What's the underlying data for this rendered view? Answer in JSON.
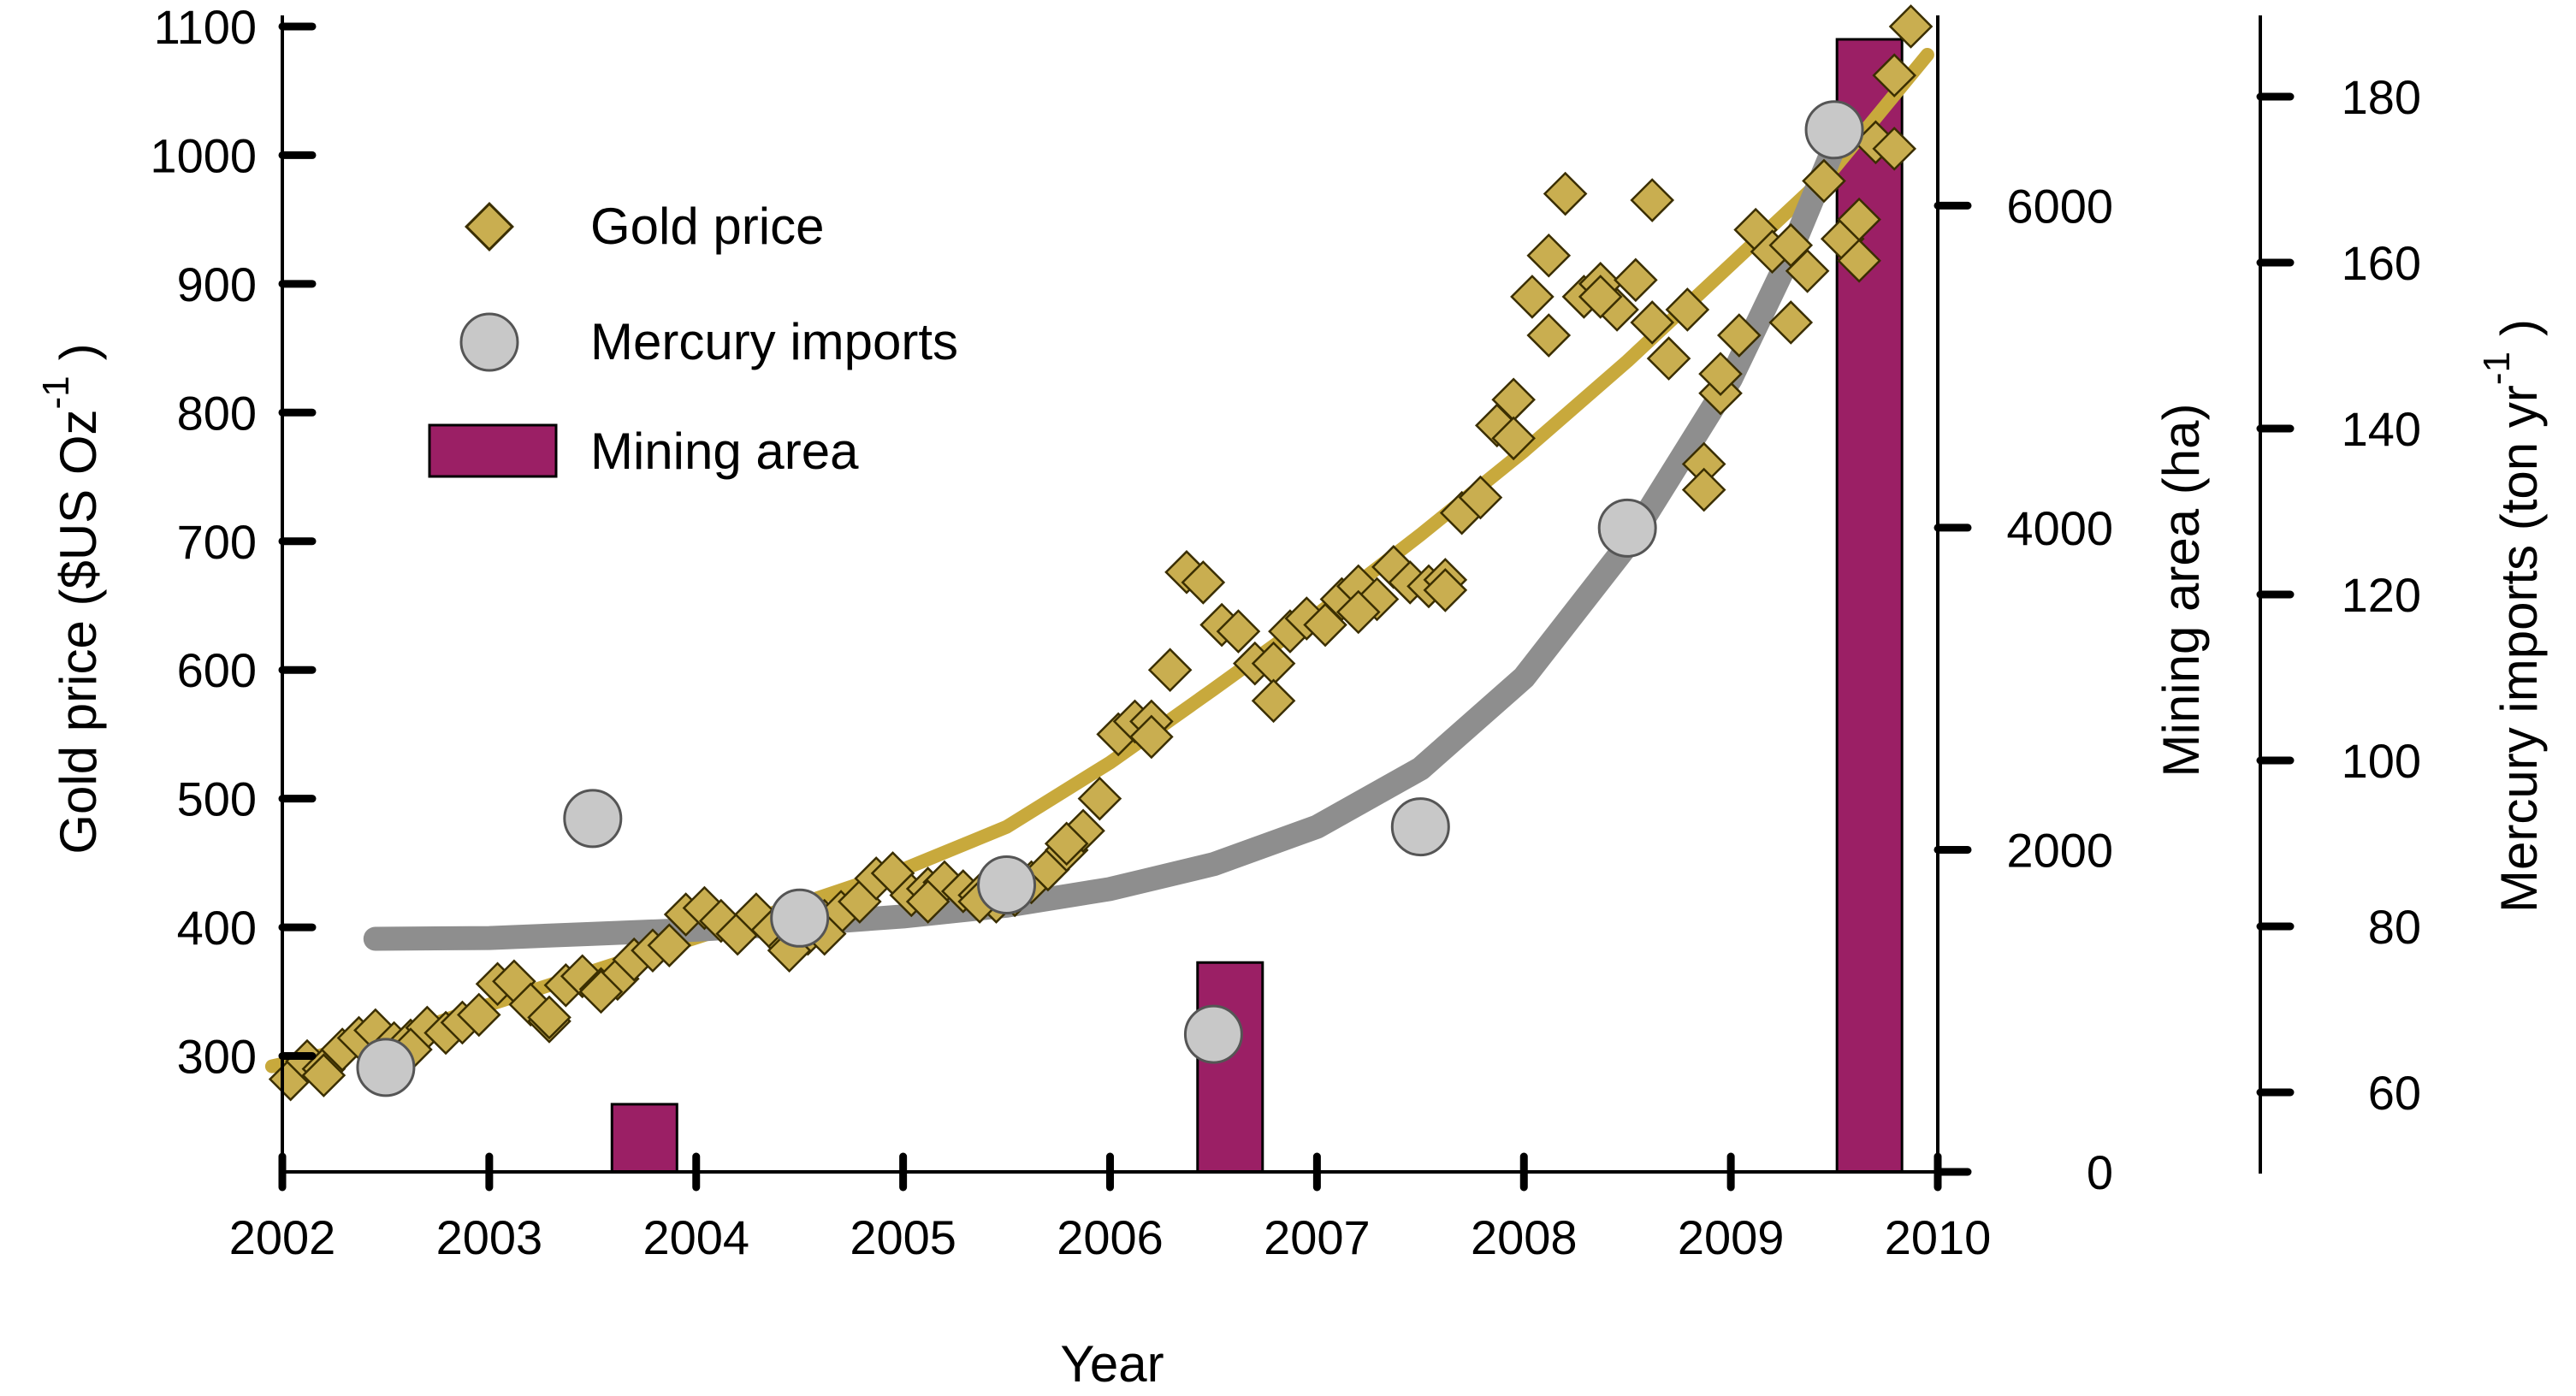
{
  "chart_data": {
    "type": "scatter",
    "xlabel": "Year",
    "xlim": [
      2002,
      2010
    ],
    "x_ticks": [
      "2002",
      "2003",
      "2004",
      "2005",
      "2006",
      "2007",
      "2008",
      "2009",
      "2010"
    ],
    "y_left": {
      "label_main": "Gold price ($US Oz",
      "label_sup": "-1",
      "label_close": ")",
      "ylim": [
        250,
        1100
      ],
      "ticks": [
        "300",
        "400",
        "500",
        "600",
        "700",
        "800",
        "900",
        "1000",
        "1100"
      ]
    },
    "y_right1": {
      "label": "Mining area (ha)",
      "ylim": [
        0,
        7000
      ],
      "ticks": [
        "0",
        "2000",
        "4000",
        "6000"
      ]
    },
    "y_right2": {
      "label_main": "Mercury imports (ton yr",
      "label_sup": "-1",
      "label_close": ")",
      "ylim": [
        50,
        190
      ],
      "ticks": [
        "60",
        "80",
        "100",
        "120",
        "140",
        "160",
        "180"
      ]
    },
    "legend": {
      "placement": "top-left",
      "gold": "Gold price",
      "mercury": "Mercury imports",
      "mining": "Mining area"
    },
    "colors": {
      "gold": "#C9AE50",
      "gold_edge": "#3a2e00",
      "gold_trend": "#C8A93C",
      "mercury": "#C8C8C8",
      "mercury_trend": "#8E8E8E",
      "mining": "#9B1F65"
    },
    "series": [
      {
        "name": "Mining area",
        "axis": "y_right1",
        "type": "bar",
        "points": [
          [
            2003.75,
            420
          ],
          [
            2006.58,
            1300
          ],
          [
            2009.67,
            7100
          ]
        ]
      },
      {
        "name": "Mercury imports",
        "axis": "y_right2",
        "type": "scatter",
        "points": [
          [
            2002.5,
            63
          ],
          [
            2003.5,
            93
          ],
          [
            2004.5,
            81
          ],
          [
            2005.5,
            85
          ],
          [
            2006.5,
            67
          ],
          [
            2007.5,
            92
          ],
          [
            2008.5,
            128
          ],
          [
            2009.5,
            176
          ]
        ]
      },
      {
        "name": "Gold price",
        "axis": "y_left",
        "type": "scatter",
        "points": [
          [
            2002.04,
            282
          ],
          [
            2002.12,
            296
          ],
          [
            2002.2,
            290
          ],
          [
            2002.29,
            305
          ],
          [
            2002.37,
            314
          ],
          [
            2002.45,
            320
          ],
          [
            2002.54,
            310
          ],
          [
            2002.62,
            312
          ],
          [
            2002.7,
            322
          ],
          [
            2002.79,
            318
          ],
          [
            2002.87,
            326
          ],
          [
            2002.95,
            332
          ],
          [
            2003.04,
            356
          ],
          [
            2003.12,
            358
          ],
          [
            2003.2,
            340
          ],
          [
            2003.29,
            327
          ],
          [
            2003.37,
            355
          ],
          [
            2003.45,
            362
          ],
          [
            2003.54,
            352
          ],
          [
            2003.62,
            360
          ],
          [
            2003.7,
            375
          ],
          [
            2003.79,
            382
          ],
          [
            2003.87,
            386
          ],
          [
            2003.95,
            410
          ],
          [
            2004.04,
            415
          ],
          [
            2004.12,
            405
          ],
          [
            2004.2,
            395
          ],
          [
            2004.29,
            410
          ],
          [
            2004.37,
            398
          ],
          [
            2004.45,
            385
          ],
          [
            2004.54,
            395
          ],
          [
            2004.62,
            405
          ],
          [
            2004.7,
            412
          ],
          [
            2004.79,
            420
          ],
          [
            2004.87,
            438
          ],
          [
            2004.95,
            442
          ],
          [
            2005.04,
            425
          ],
          [
            2005.12,
            430
          ],
          [
            2005.2,
            435
          ],
          [
            2005.29,
            428
          ],
          [
            2005.37,
            425
          ],
          [
            2005.45,
            420
          ],
          [
            2005.54,
            425
          ],
          [
            2005.62,
            435
          ],
          [
            2005.7,
            445
          ],
          [
            2005.79,
            460
          ],
          [
            2005.87,
            475
          ],
          [
            2005.95,
            500
          ],
          [
            2006.04,
            550
          ],
          [
            2006.12,
            560
          ],
          [
            2006.2,
            560
          ],
          [
            2006.29,
            600
          ],
          [
            2006.37,
            676
          ],
          [
            2006.45,
            668
          ],
          [
            2006.54,
            635
          ],
          [
            2006.62,
            630
          ],
          [
            2006.7,
            605
          ],
          [
            2006.79,
            605
          ],
          [
            2006.87,
            630
          ],
          [
            2006.95,
            640
          ],
          [
            2007.04,
            635
          ],
          [
            2007.12,
            655
          ],
          [
            2007.2,
            665
          ],
          [
            2007.29,
            655
          ],
          [
            2007.37,
            680
          ],
          [
            2007.45,
            668
          ],
          [
            2007.54,
            665
          ],
          [
            2007.62,
            670
          ],
          [
            2007.7,
            722
          ],
          [
            2007.79,
            734
          ],
          [
            2007.87,
            790
          ],
          [
            2007.95,
            810
          ],
          [
            2008.04,
            890
          ],
          [
            2008.12,
            922
          ],
          [
            2008.2,
            970
          ],
          [
            2008.29,
            890
          ],
          [
            2008.37,
            900
          ],
          [
            2008.45,
            880
          ],
          [
            2008.54,
            903
          ],
          [
            2008.62,
            870
          ],
          [
            2008.7,
            842
          ],
          [
            2008.79,
            880
          ],
          [
            2008.87,
            760
          ],
          [
            2008.95,
            815
          ],
          [
            2009.04,
            860
          ],
          [
            2009.12,
            942
          ],
          [
            2009.2,
            925
          ],
          [
            2009.29,
            930
          ],
          [
            2009.37,
            910
          ],
          [
            2009.45,
            980
          ],
          [
            2009.54,
            935
          ],
          [
            2009.62,
            950
          ],
          [
            2009.7,
            1010
          ],
          [
            2009.79,
            1062
          ],
          [
            2009.87,
            1100
          ],
          [
            2002.2,
            285
          ],
          [
            2002.62,
            305
          ],
          [
            2003.29,
            330
          ],
          [
            2003.54,
            350
          ],
          [
            2004.45,
            382
          ],
          [
            2004.62,
            395
          ],
          [
            2005.12,
            420
          ],
          [
            2005.37,
            420
          ],
          [
            2005.79,
            465
          ],
          [
            2006.2,
            548
          ],
          [
            2006.79,
            576
          ],
          [
            2007.2,
            645
          ],
          [
            2007.62,
            662
          ],
          [
            2007.95,
            780
          ],
          [
            2008.12,
            860
          ],
          [
            2008.37,
            890
          ],
          [
            2008.62,
            965
          ],
          [
            2008.87,
            740
          ],
          [
            2008.95,
            830
          ],
          [
            2009.29,
            870
          ],
          [
            2009.62,
            918
          ],
          [
            2009.79,
            1005
          ]
        ]
      }
    ],
    "trend_lines": [
      {
        "name": "Gold price trend",
        "axis": "y_left",
        "points": [
          [
            2001.95,
            292
          ],
          [
            2002.5,
            312
          ],
          [
            2003.0,
            340
          ],
          [
            2003.5,
            366
          ],
          [
            2004.0,
            392
          ],
          [
            2004.5,
            418
          ],
          [
            2005.0,
            445
          ],
          [
            2005.5,
            478
          ],
          [
            2006.0,
            528
          ],
          [
            2006.5,
            585
          ],
          [
            2007.0,
            643
          ],
          [
            2007.5,
            705
          ],
          [
            2008.0,
            770
          ],
          [
            2008.5,
            840
          ],
          [
            2009.0,
            915
          ],
          [
            2009.5,
            990
          ],
          [
            2009.95,
            1078
          ]
        ]
      },
      {
        "name": "Mercury trend",
        "axis": "y_right2",
        "points": [
          [
            2002.45,
            78.5
          ],
          [
            2003.0,
            78.6
          ],
          [
            2003.5,
            79.1
          ],
          [
            2004.0,
            79.6
          ],
          [
            2004.5,
            80.3
          ],
          [
            2005.0,
            81.2
          ],
          [
            2005.5,
            82.5
          ],
          [
            2006.0,
            84.5
          ],
          [
            2006.5,
            87.5
          ],
          [
            2007.0,
            92.0
          ],
          [
            2007.5,
            99.0
          ],
          [
            2008.0,
            110.0
          ],
          [
            2008.5,
            126.0
          ],
          [
            2009.0,
            146.0
          ],
          [
            2009.25,
            159.0
          ],
          [
            2009.5,
            174.0
          ]
        ]
      }
    ]
  }
}
